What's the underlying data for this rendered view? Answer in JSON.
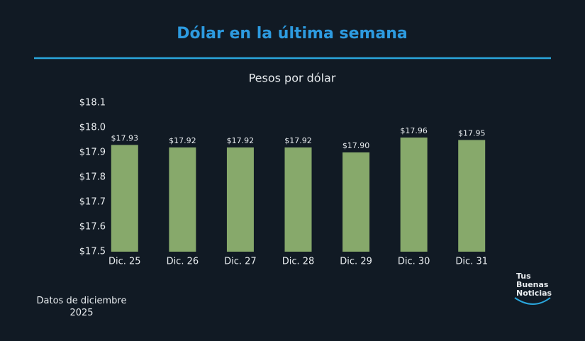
{
  "chart_data": {
    "type": "bar",
    "title": "Dólar en la última semana",
    "subtitle": "Pesos por dólar",
    "categories": [
      "Dic. 25",
      "Dic. 26",
      "Dic. 27",
      "Dic. 28",
      "Dic. 29",
      "Dic. 30",
      "Dic. 31"
    ],
    "values": [
      17.93,
      17.92,
      17.92,
      17.92,
      17.9,
      17.96,
      17.95
    ],
    "value_labels": [
      "$17.93",
      "$17.92",
      "$17.92",
      "$17.92",
      "$17.90",
      "$17.96",
      "$17.95"
    ],
    "color": "#87a96b",
    "ylim": [
      17.5,
      18.1
    ],
    "yticks": [
      {
        "value": 17.5,
        "label": "$17.5"
      },
      {
        "value": 17.6,
        "label": "$17.6"
      },
      {
        "value": 17.7,
        "label": "$17.7"
      },
      {
        "value": 17.8,
        "label": "$17.8"
      },
      {
        "value": 17.9,
        "label": "$17.9"
      },
      {
        "value": 18.0,
        "label": "$18.0"
      },
      {
        "value": 18.1,
        "label": "$18.1"
      }
    ],
    "grid": false,
    "note": "Datos de diciembre 2025"
  },
  "logo": "Tus Buenas Noticias"
}
